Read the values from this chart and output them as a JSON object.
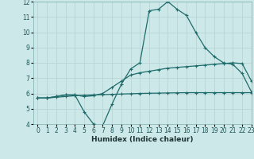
{
  "xlabel": "Humidex (Indice chaleur)",
  "xlim": [
    -0.5,
    23
  ],
  "ylim": [
    4,
    12
  ],
  "yticks": [
    4,
    5,
    6,
    7,
    8,
    9,
    10,
    11,
    12
  ],
  "xticks": [
    0,
    1,
    2,
    3,
    4,
    5,
    6,
    7,
    8,
    9,
    10,
    11,
    12,
    13,
    14,
    15,
    16,
    17,
    18,
    19,
    20,
    21,
    22,
    23
  ],
  "bg_color": "#cde8e8",
  "grid_color": "#b8d4d4",
  "line_color": "#1e6b6b",
  "line1": [
    5.7,
    5.7,
    5.8,
    5.9,
    5.9,
    4.8,
    4.0,
    3.9,
    5.3,
    6.6,
    7.6,
    8.0,
    11.4,
    11.5,
    12.0,
    11.5,
    11.1,
    10.0,
    9.0,
    8.4,
    8.0,
    7.9,
    7.3,
    6.1
  ],
  "line2": [
    5.7,
    5.7,
    5.8,
    5.9,
    5.9,
    5.8,
    5.85,
    6.0,
    6.4,
    6.8,
    7.2,
    7.35,
    7.45,
    7.55,
    7.65,
    7.7,
    7.75,
    7.8,
    7.85,
    7.9,
    7.95,
    8.0,
    7.95,
    6.8
  ],
  "line3": [
    5.7,
    5.7,
    5.75,
    5.8,
    5.85,
    5.88,
    5.9,
    5.92,
    5.94,
    5.96,
    5.98,
    6.0,
    6.01,
    6.02,
    6.03,
    6.04,
    6.05,
    6.05,
    6.05,
    6.05,
    6.05,
    6.05,
    6.05,
    6.05
  ]
}
